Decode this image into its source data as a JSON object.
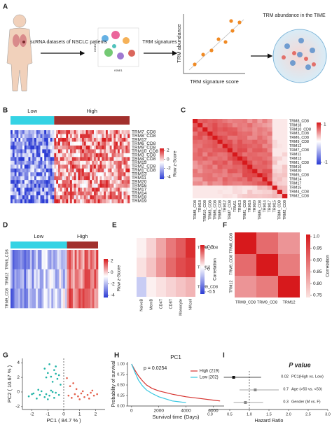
{
  "panel_labels": [
    "A",
    "B",
    "C",
    "D",
    "E",
    "F",
    "G",
    "H",
    "I"
  ],
  "a": {
    "step1": "scRNA datasets of NSCLC patients",
    "tsne_x": "tSNE1",
    "tsne_y": "tSNE2",
    "step2": "TRM signatures",
    "y_label": "TRM abundance",
    "x_label": "TRM signature score",
    "result": "TRM abundance in the TIME"
  },
  "b": {
    "groups": [
      {
        "label": "Low",
        "color": "#35d3e4"
      },
      {
        "label": "High",
        "color": "#a2302d"
      }
    ],
    "rows": [
      "TRM7_CD8",
      "TRM8_CD8",
      "TRM12",
      "TRM6_CD8",
      "TRM9_CD8",
      "TRM10_CD8",
      "TRM3_CD8",
      "TRM4_CD8",
      "TRM15",
      "TRM2_CD8",
      "TRM1_CD8",
      "TRM13",
      "TRM11",
      "TRM20",
      "TRM16",
      "TRM17",
      "TRM14",
      "TRM18",
      "TRM19"
    ],
    "colorbar_label": "Row z-Score",
    "colorbar_ticks": [
      2,
      0,
      -2,
      -4
    ]
  },
  "c": {
    "rows": [
      {
        "label": "TRM8_CD8",
        "color": "#e0302c"
      },
      {
        "label": "TRM18",
        "color": "#222222"
      },
      {
        "label": "TRM10_CD8",
        "color": "#222222"
      },
      {
        "label": "TRM3_CD8",
        "color": "#222222"
      },
      {
        "label": "TRM6_CD8",
        "color": "#222222"
      },
      {
        "label": "TRM9_CD8",
        "color": "#e0302c"
      },
      {
        "label": "TRM12",
        "color": "#e0302c"
      },
      {
        "label": "TRM7_CD8",
        "color": "#222222"
      },
      {
        "label": "TRM11",
        "color": "#222222"
      },
      {
        "label": "TRM13",
        "color": "#222222"
      },
      {
        "label": "TRM1_CD8",
        "color": "#222222"
      },
      {
        "label": "TRM16",
        "color": "#222222"
      },
      {
        "label": "TRM20",
        "color": "#222222"
      },
      {
        "label": "TRM5_CD8",
        "color": "#222222"
      },
      {
        "label": "TRM14",
        "color": "#222222"
      },
      {
        "label": "TRM17",
        "color": "#222222"
      },
      {
        "label": "TRM15",
        "color": "#222222"
      },
      {
        "label": "TRM4_CD8",
        "color": "#222222"
      },
      {
        "label": "TRM2_CD8",
        "color": "#222222"
      }
    ],
    "colorbar_ticks": [
      1,
      -1
    ]
  },
  "d": {
    "groups": [
      {
        "label": "Low",
        "color": "#35d3e4"
      },
      {
        "label": "High",
        "color": "#a2302d"
      }
    ],
    "rows": [
      "TRM8_CD8",
      "TRM12",
      "TRM9_CD8"
    ],
    "colorbar_label": "Row z-Score",
    "colorbar_ticks": [
      2,
      0,
      -2,
      -4
    ]
  },
  "e": {
    "rows": [
      "TRM8_CD8",
      "TRM12",
      "TRM9_CD8"
    ],
    "columns": [
      "NaiveB",
      "MemB",
      "CD4T",
      "CD8T",
      "Monocyte",
      "NKcell"
    ],
    "values": [
      [
        0.05,
        0.15,
        0.3,
        0.45,
        0.55,
        0.7
      ],
      [
        0.1,
        0.2,
        0.35,
        0.5,
        0.6,
        0.65
      ],
      [
        -0.2,
        0.05,
        0.1,
        0.15,
        0.2,
        0.25
      ]
    ],
    "colorbar_label": "Correlation",
    "colorbar_ticks": [
      0.5,
      0,
      -0.5
    ]
  },
  "f": {
    "labels": [
      "TRM8_CD8",
      "TRM9_CD8",
      "TRM12"
    ],
    "values": [
      [
        1,
        0.9,
        0.85
      ],
      [
        0.9,
        1,
        0.88
      ],
      [
        0.85,
        0.88,
        1
      ]
    ],
    "colorbar_label": "Correlation",
    "colorbar_ticks": [
      {
        "value": 1,
        "label": "1.0"
      },
      0.95,
      {
        "value": 0.9,
        "label": "0.90"
      },
      0.85,
      {
        "value": 0.8,
        "label": "0.80"
      },
      0.75
    ]
  },
  "g": {
    "x_label": "PC1 ( 84.7 % )",
    "y_label": "PC2 ( 10.67 % )",
    "xticks": [
      -2,
      -1,
      0,
      1,
      2
    ],
    "yticks": [
      4,
      2,
      0,
      -2
    ],
    "xlim": [
      -2.6,
      2.6
    ],
    "ylim": [
      -2.4,
      4.6
    ],
    "series": [
      {
        "color": "#1fb3a6",
        "x": [
          -2.2,
          -1.9,
          -1.7,
          -1.5,
          -1.4,
          -1.2,
          -1.1,
          -0.9,
          -0.8,
          -0.6,
          -0.5,
          -0.3,
          -1.6,
          -1.0,
          -2.0,
          -0.7,
          -1.2,
          -1.0,
          -0.9,
          -0.8,
          -0.6,
          -0.5,
          -0.4,
          -0.3,
          -0.7,
          -0.2,
          -1.1,
          -0.5
        ],
        "y": [
          -0.6,
          -0.2,
          -0.9,
          -0.4,
          0.1,
          -0.7,
          -0.3,
          -0.5,
          0.2,
          -0.8,
          -0.1,
          -0.4,
          0.3,
          -1.0,
          -0.3,
          0.0,
          3.2,
          2.6,
          3.8,
          2.1,
          3.0,
          2.5,
          1.8,
          2.3,
          1.4,
          1.0,
          2.0,
          3.5
        ]
      },
      {
        "color": "#e3604b",
        "x": [
          0.3,
          0.5,
          0.7,
          0.9,
          1.1,
          1.3,
          1.5,
          1.7,
          1.9,
          2.1,
          0.8,
          1.2,
          1.6,
          0.4,
          1.0,
          1.8,
          0.6,
          0.2
        ],
        "y": [
          -0.5,
          -0.8,
          -0.3,
          -0.6,
          -0.2,
          -0.7,
          -0.4,
          -0.1,
          -0.5,
          -0.3,
          0.4,
          0.1,
          -0.9,
          0.8,
          -1.0,
          0.2,
          1.2,
          1.9
        ]
      }
    ]
  },
  "h": {
    "title": "PC1",
    "p_text": "p = 0.0254",
    "x_label": "Survival time (Days)",
    "y_label": "Probability of survival",
    "xticks": [
      0,
      2000,
      4000,
      6000
    ],
    "yticks": [
      {
        "value": 0,
        "label": "0.00"
      },
      0.25,
      {
        "value": 0.5,
        "label": "0.50"
      },
      0.75,
      {
        "value": 1,
        "label": "1.00"
      }
    ],
    "xlim": [
      -300,
      6800
    ],
    "ylim": [
      0,
      1.05
    ],
    "series": [
      {
        "name": "High (219)",
        "color": "#d6322e",
        "x": [
          0,
          250,
          500,
          800,
          1100,
          1500,
          2000,
          2500,
          3000,
          3500,
          4000,
          5000,
          6000,
          6500
        ],
        "y": [
          1,
          0.85,
          0.72,
          0.6,
          0.5,
          0.42,
          0.36,
          0.32,
          0.28,
          0.25,
          0.22,
          0.18,
          0.14,
          0.12
        ]
      },
      {
        "name": "Low (202)",
        "color": "#36c6e0",
        "x": [
          0,
          250,
          500,
          800,
          1100,
          1500,
          2000,
          2500,
          3000,
          3500,
          4000
        ],
        "y": [
          1,
          0.8,
          0.62,
          0.48,
          0.38,
          0.3,
          0.22,
          0.17,
          0.12,
          0.1,
          0.08
        ]
      }
    ]
  },
  "i": {
    "title": "P value",
    "x_label": "Hazard Ratio",
    "rows": [
      {
        "p": 0.02,
        "label": "PC1(High vs. Low)",
        "hr": 0.6,
        "ci": [
          0.35,
          1.3
        ],
        "color": "#111111"
      },
      {
        "p": 0.7,
        "label": "Age (>50 vs. <50)",
        "hr": 1.15,
        "ci": [
          0.75,
          1.75
        ],
        "color": "#888888"
      },
      {
        "p": 0.3,
        "label": "Gender (M vs. F)",
        "hr": 0.9,
        "ci": [
          0.6,
          1.35
        ],
        "color": "#888888"
      }
    ],
    "xticks": [
      {
        "value": 0,
        "label": "0.0"
      },
      0.5,
      {
        "value": 1,
        "label": "1.0"
      },
      1.5,
      {
        "value": 2,
        "label": "2.0"
      },
      2.5,
      {
        "value": 3,
        "label": "3.0"
      }
    ],
    "xlim": [
      0,
      3
    ],
    "ref": 1
  }
}
